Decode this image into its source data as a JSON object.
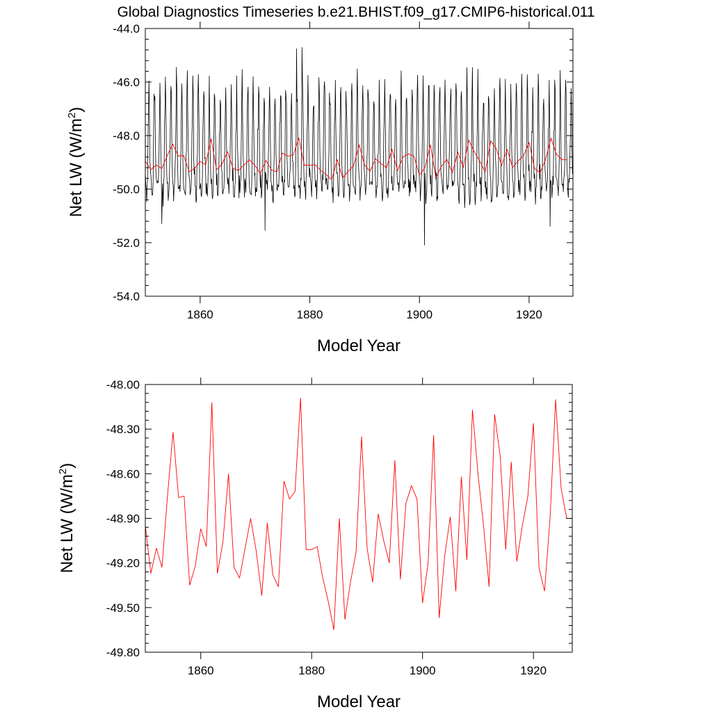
{
  "page": {
    "title": "Global Diagnostics Timeseries b.e21.BHIST.f09_g17.CMIP6-historical.011"
  },
  "colors": {
    "monthly_line": "#000000",
    "annual_line": "#ff0000",
    "axes": "#000000",
    "background": "#ffffff"
  },
  "chart_data": [
    {
      "type": "line",
      "panel": "top",
      "title": "Global Diagnostics Timeseries b.e21.BHIST.f09_g17.CMIP6-historical.011",
      "xlabel": "Model Year",
      "ylabel": "Net LW",
      "ylabel_units": "(W/m",
      "ylabel_superscript": "2",
      "ylabel_close": ")",
      "xlim": [
        1850,
        1928
      ],
      "ylim": [
        -54.0,
        -44.0
      ],
      "x_ticks": [
        1860,
        1880,
        1900,
        1920
      ],
      "x_tick_labels": [
        "1860",
        "1880",
        "1900",
        "1920"
      ],
      "y_ticks": [
        -44.0,
        -46.0,
        -48.0,
        -50.0,
        -52.0,
        -54.0
      ],
      "y_tick_labels": [
        "-44.0",
        "-46.0",
        "-48.0",
        "-50.0",
        "-52.0",
        "-54.0"
      ],
      "grid": false,
      "series": [
        {
          "name": "monthly",
          "color": "#000000",
          "description": "Monthly global mean Net LW with strong annual cycle (peaks near -46 to -44.7, troughs near -50.5 to -52.1)",
          "start_year": 1850,
          "monthly_pattern": [
            -49.6,
            -49.9,
            -50.1,
            -50.2,
            -49.9,
            -49.3,
            -48.3,
            -47.1,
            -46.2,
            -46.9,
            -48.6,
            -49.4
          ],
          "notable_points": [
            {
              "x": 1878.6,
              "y": -44.7
            },
            {
              "x": 1877.6,
              "y": -44.75
            },
            {
              "x": 1900.9,
              "y": -52.1
            },
            {
              "x": 1871.8,
              "y": -51.55
            },
            {
              "x": 1923.8,
              "y": -51.4
            },
            {
              "x": 1853.0,
              "y": -51.3
            }
          ]
        },
        {
          "name": "annual mean",
          "color": "#ff0000",
          "x": [
            1850.0,
            1851.0,
            1852.0,
            1853.0,
            1854.0,
            1855.0,
            1856.0,
            1857.0,
            1858.0,
            1859.0,
            1860.0,
            1861.0,
            1862.0,
            1863.0,
            1864.0,
            1865.0,
            1866.0,
            1867.0,
            1868.0,
            1869.0,
            1870.0,
            1871.0,
            1872.0,
            1873.0,
            1874.0,
            1875.0,
            1876.0,
            1877.0,
            1878.0,
            1879.0,
            1880.0,
            1881.0,
            1882.0,
            1883.0,
            1884.0,
            1885.0,
            1886.0,
            1887.0,
            1888.0,
            1889.0,
            1890.0,
            1891.0,
            1892.0,
            1893.0,
            1894.0,
            1895.0,
            1896.0,
            1897.0,
            1898.0,
            1899.0,
            1900.0,
            1901.0,
            1902.0,
            1903.0,
            1904.0,
            1905.0,
            1906.0,
            1907.0,
            1908.0,
            1909.0,
            1910.0,
            1911.0,
            1912.0,
            1913.0,
            1914.0,
            1915.0,
            1916.0,
            1917.0,
            1918.0,
            1919.0,
            1920.0,
            1921.0,
            1922.0,
            1923.0,
            1924.0,
            1925.0,
            1926.0,
            1927.0
          ],
          "values": [
            -48.95,
            -49.27,
            -49.1,
            -49.23,
            -48.75,
            -48.32,
            -48.76,
            -48.75,
            -49.35,
            -49.22,
            -48.97,
            -49.09,
            -48.12,
            -49.27,
            -49.06,
            -48.6,
            -49.23,
            -49.3,
            -49.1,
            -48.9,
            -49.12,
            -49.42,
            -48.93,
            -49.28,
            -49.36,
            -48.65,
            -48.77,
            -48.72,
            -48.09,
            -49.11,
            -49.11,
            -49.09,
            -49.3,
            -49.46,
            -49.65,
            -48.9,
            -49.58,
            -49.33,
            -49.13,
            -48.35,
            -49.1,
            -49.33,
            -48.87,
            -49.05,
            -49.2,
            -48.51,
            -49.31,
            -48.8,
            -48.68,
            -48.77,
            -49.47,
            -49.2,
            -48.34,
            -49.57,
            -49.15,
            -48.89,
            -49.39,
            -48.62,
            -49.18,
            -48.17,
            -48.6,
            -48.95,
            -49.36,
            -48.2,
            -48.48,
            -49.11,
            -48.52,
            -49.19,
            -48.95,
            -48.75,
            -48.26,
            -49.23,
            -49.39,
            -48.9,
            -48.1,
            -48.7,
            -48.9,
            -48.9
          ]
        }
      ]
    },
    {
      "type": "line",
      "panel": "bottom",
      "title": "",
      "xlabel": "Model Year",
      "ylabel": "Net LW",
      "ylabel_units": "(W/m",
      "ylabel_superscript": "2",
      "ylabel_close": ")",
      "xlim": [
        1850,
        1927
      ],
      "ylim": [
        -49.8,
        -48.0
      ],
      "x_ticks": [
        1860,
        1880,
        1900,
        1920
      ],
      "x_tick_labels": [
        "1860",
        "1880",
        "1900",
        "1920"
      ],
      "y_ticks": [
        -48.0,
        -48.3,
        -48.6,
        -48.9,
        -49.2,
        -49.5,
        -49.8
      ],
      "y_tick_labels": [
        "-48.00",
        "-48.30",
        "-48.60",
        "-48.90",
        "-49.20",
        "-49.50",
        "-49.80"
      ],
      "grid": false,
      "series": [
        {
          "name": "annual mean",
          "color": "#ff0000",
          "x": [
            1850.0,
            1851.0,
            1852.0,
            1853.0,
            1854.0,
            1855.0,
            1856.0,
            1857.0,
            1858.0,
            1859.0,
            1860.0,
            1861.0,
            1862.0,
            1863.0,
            1864.0,
            1865.0,
            1866.0,
            1867.0,
            1868.0,
            1869.0,
            1870.0,
            1871.0,
            1872.0,
            1873.0,
            1874.0,
            1875.0,
            1876.0,
            1877.0,
            1878.0,
            1879.0,
            1880.0,
            1881.0,
            1882.0,
            1883.0,
            1884.0,
            1885.0,
            1886.0,
            1887.0,
            1888.0,
            1889.0,
            1890.0,
            1891.0,
            1892.0,
            1893.0,
            1894.0,
            1895.0,
            1896.0,
            1897.0,
            1898.0,
            1899.0,
            1900.0,
            1901.0,
            1902.0,
            1903.0,
            1904.0,
            1905.0,
            1906.0,
            1907.0,
            1908.0,
            1909.0,
            1910.0,
            1911.0,
            1912.0,
            1913.0,
            1914.0,
            1915.0,
            1916.0,
            1917.0,
            1918.0,
            1919.0,
            1920.0,
            1921.0,
            1922.0,
            1923.0,
            1924.0,
            1925.0,
            1926.0,
            1927.0
          ],
          "values": [
            -48.95,
            -49.27,
            -49.1,
            -49.23,
            -48.75,
            -48.32,
            -48.76,
            -48.75,
            -49.35,
            -49.22,
            -48.97,
            -49.09,
            -48.12,
            -49.27,
            -49.06,
            -48.6,
            -49.23,
            -49.3,
            -49.1,
            -48.9,
            -49.12,
            -49.42,
            -48.93,
            -49.28,
            -49.36,
            -48.65,
            -48.77,
            -48.72,
            -48.09,
            -49.11,
            -49.11,
            -49.09,
            -49.3,
            -49.46,
            -49.65,
            -48.9,
            -49.58,
            -49.33,
            -49.13,
            -48.35,
            -49.1,
            -49.33,
            -48.87,
            -49.05,
            -49.2,
            -48.51,
            -49.31,
            -48.8,
            -48.68,
            -48.77,
            -49.47,
            -49.2,
            -48.34,
            -49.57,
            -49.15,
            -48.89,
            -49.39,
            -48.62,
            -49.18,
            -48.17,
            -48.6,
            -48.95,
            -49.36,
            -48.2,
            -48.48,
            -49.11,
            -48.52,
            -49.19,
            -48.95,
            -48.75,
            -48.26,
            -49.23,
            -49.39,
            -48.9,
            -48.1,
            -48.7,
            -48.9,
            -48.9
          ]
        }
      ]
    }
  ]
}
